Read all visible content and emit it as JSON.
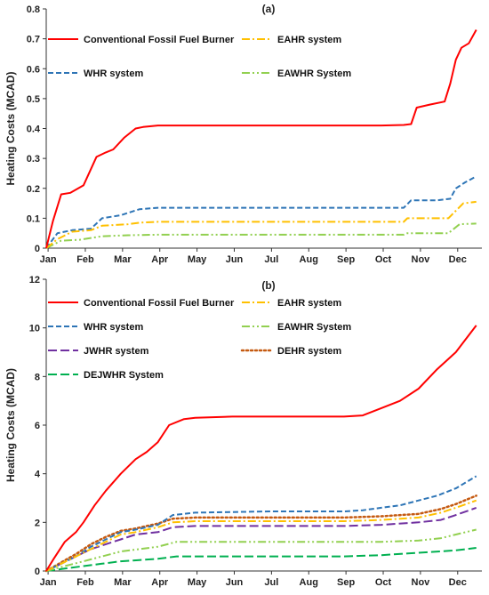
{
  "chart_data": [
    {
      "type": "line",
      "title": "(a)",
      "ylabel": "Heating Costs (MCAD)",
      "xlabel": "",
      "ylim": [
        0,
        0.8
      ],
      "yticks": [
        "0",
        "0.1",
        "0.2",
        "0.3",
        "0.4",
        "0.5",
        "0.6",
        "0.7",
        "0.8"
      ],
      "xticks": [
        "Jan",
        "Feb",
        "Mar",
        "Apr",
        "May",
        "Jun",
        "Jul",
        "Aug",
        "Sep",
        "Oct",
        "Nov",
        "Dec"
      ],
      "grid": false,
      "legend": "top",
      "series": [
        {
          "name": "Conventional Fossil Fuel Burner",
          "color": "#ff0000",
          "dash": "solid",
          "x": [
            0,
            0.18,
            0.4,
            0.65,
            1.0,
            1.35,
            1.6,
            1.8,
            2.1,
            2.4,
            2.6,
            3.0,
            3.5,
            5.0,
            7.0,
            9.0,
            9.6,
            9.8,
            9.95,
            10.3,
            10.7,
            10.85,
            11.0,
            11.15,
            11.35,
            11.55
          ],
          "y": [
            0,
            0.09,
            0.18,
            0.185,
            0.21,
            0.305,
            0.32,
            0.33,
            0.37,
            0.4,
            0.405,
            0.41,
            0.41,
            0.41,
            0.41,
            0.41,
            0.412,
            0.415,
            0.47,
            0.48,
            0.49,
            0.55,
            0.63,
            0.67,
            0.685,
            0.73
          ]
        },
        {
          "name": "EAHR system",
          "color": "#ffc000",
          "dash": "dashdot",
          "x": [
            0,
            0.3,
            0.7,
            1.2,
            1.5,
            2.2,
            2.5,
            3.0,
            6.0,
            9.6,
            9.7,
            10.2,
            10.8,
            11.0,
            11.2,
            11.55
          ],
          "y": [
            0,
            0.03,
            0.055,
            0.06,
            0.075,
            0.08,
            0.085,
            0.088,
            0.088,
            0.088,
            0.1,
            0.1,
            0.1,
            0.125,
            0.15,
            0.155
          ]
        },
        {
          "name": "WHR system",
          "color": "#2e75b6",
          "dash": "dashed",
          "x": [
            0,
            0.3,
            0.7,
            1.2,
            1.5,
            2.0,
            2.5,
            3.0,
            6.0,
            9.6,
            9.8,
            10.5,
            10.85,
            11.0,
            11.25,
            11.55
          ],
          "y": [
            0,
            0.05,
            0.06,
            0.065,
            0.1,
            0.11,
            0.13,
            0.135,
            0.135,
            0.135,
            0.16,
            0.16,
            0.165,
            0.2,
            0.22,
            0.24
          ]
        },
        {
          "name": "EAWHR System",
          "color": "#92d050",
          "dash": "dashdotdot",
          "x": [
            0,
            0.4,
            0.9,
            1.5,
            2.2,
            3.0,
            6.0,
            9.6,
            9.7,
            10.8,
            11.1,
            11.55
          ],
          "y": [
            0,
            0.025,
            0.028,
            0.04,
            0.043,
            0.045,
            0.045,
            0.045,
            0.05,
            0.05,
            0.08,
            0.082
          ]
        }
      ]
    },
    {
      "type": "line",
      "title": "(b)",
      "ylabel": "Heating Costs (MCAD)",
      "xlabel": "",
      "ylim": [
        0,
        12
      ],
      "yticks": [
        "0",
        "2",
        "4",
        "6",
        "8",
        "10",
        "12"
      ],
      "xticks": [
        "Jan",
        "Feb",
        "Mar",
        "Apr",
        "May",
        "Jun",
        "Jul",
        "Aug",
        "Sep",
        "Oct",
        "Nov",
        "Dec"
      ],
      "grid": false,
      "legend": "top",
      "series": [
        {
          "name": "Conventional Fossil Fuel Burner",
          "color": "#ff0000",
          "dash": "solid",
          "x": [
            0,
            0.2,
            0.5,
            0.8,
            1.0,
            1.3,
            1.6,
            2.0,
            2.4,
            2.7,
            3.0,
            3.3,
            3.7,
            4.0,
            5.0,
            6.0,
            7.0,
            8.0,
            8.5,
            9.0,
            9.5,
            10.0,
            10.5,
            11.0,
            11.3,
            11.55
          ],
          "y": [
            0,
            0.5,
            1.2,
            1.6,
            2.0,
            2.7,
            3.3,
            4.0,
            4.6,
            4.9,
            5.3,
            6.0,
            6.25,
            6.3,
            6.35,
            6.35,
            6.35,
            6.35,
            6.4,
            6.7,
            7.0,
            7.5,
            8.3,
            9.0,
            9.6,
            10.1
          ]
        },
        {
          "name": "EAHR system",
          "color": "#ffc000",
          "dash": "dashdot",
          "x": [
            0,
            0.4,
            0.8,
            1.2,
            1.6,
            2.0,
            2.4,
            2.7,
            3.0,
            3.4,
            4.0,
            6.0,
            8.0,
            9.0,
            10.0,
            10.6,
            11.0,
            11.55
          ],
          "y": [
            0,
            0.3,
            0.6,
            0.9,
            1.2,
            1.5,
            1.6,
            1.7,
            1.8,
            2.0,
            2.05,
            2.05,
            2.05,
            2.1,
            2.2,
            2.4,
            2.6,
            2.9
          ]
        },
        {
          "name": "WHR system",
          "color": "#2e75b6",
          "dash": "dashed",
          "x": [
            0,
            0.4,
            0.8,
            1.2,
            1.6,
            2.0,
            2.4,
            2.7,
            3.0,
            3.4,
            4.0,
            6.0,
            8.0,
            8.5,
            9.0,
            9.5,
            10.0,
            10.5,
            11.0,
            11.55
          ],
          "y": [
            0,
            0.3,
            0.6,
            1.0,
            1.3,
            1.6,
            1.7,
            1.8,
            1.9,
            2.3,
            2.4,
            2.45,
            2.45,
            2.5,
            2.6,
            2.7,
            2.9,
            3.1,
            3.4,
            3.9
          ]
        },
        {
          "name": "EAWHR System",
          "color": "#92d050",
          "dash": "dashdotdot",
          "x": [
            0,
            0.5,
            1.0,
            1.5,
            2.0,
            2.5,
            3.0,
            3.5,
            4.0,
            6.0,
            8.0,
            9.0,
            10.0,
            10.6,
            11.0,
            11.55
          ],
          "y": [
            0,
            0.2,
            0.4,
            0.6,
            0.8,
            0.9,
            1.0,
            1.2,
            1.2,
            1.2,
            1.2,
            1.2,
            1.25,
            1.35,
            1.5,
            1.7
          ]
        },
        {
          "name": "JWHR system",
          "color": "#7030a0",
          "dash": "longdash",
          "x": [
            0,
            0.4,
            0.8,
            1.2,
            1.6,
            2.0,
            2.4,
            2.7,
            3.0,
            3.4,
            4.0,
            6.0,
            8.0,
            9.0,
            10.0,
            10.6,
            11.0,
            11.55
          ],
          "y": [
            0,
            0.3,
            0.6,
            0.9,
            1.1,
            1.3,
            1.5,
            1.55,
            1.6,
            1.8,
            1.85,
            1.85,
            1.85,
            1.9,
            2.0,
            2.1,
            2.3,
            2.6
          ]
        },
        {
          "name": "DEHR system",
          "color": "#c55a11",
          "dash": "dotted",
          "x": [
            0,
            0.4,
            0.8,
            1.2,
            1.6,
            2.0,
            2.4,
            2.7,
            3.0,
            3.4,
            4.0,
            6.0,
            8.0,
            9.0,
            10.0,
            10.6,
            11.0,
            11.55
          ],
          "y": [
            0,
            0.35,
            0.7,
            1.1,
            1.4,
            1.65,
            1.75,
            1.85,
            1.95,
            2.15,
            2.2,
            2.2,
            2.2,
            2.25,
            2.35,
            2.55,
            2.75,
            3.1
          ]
        },
        {
          "name": "DEJWHR System",
          "color": "#00b050",
          "dash": "longdash",
          "x": [
            0,
            0.5,
            1.0,
            1.5,
            2.0,
            2.5,
            3.0,
            3.5,
            4.0,
            6.0,
            8.0,
            9.0,
            10.0,
            11.0,
            11.55
          ],
          "y": [
            0,
            0.1,
            0.2,
            0.3,
            0.4,
            0.45,
            0.5,
            0.6,
            0.6,
            0.6,
            0.6,
            0.65,
            0.75,
            0.85,
            0.95
          ]
        }
      ]
    }
  ]
}
